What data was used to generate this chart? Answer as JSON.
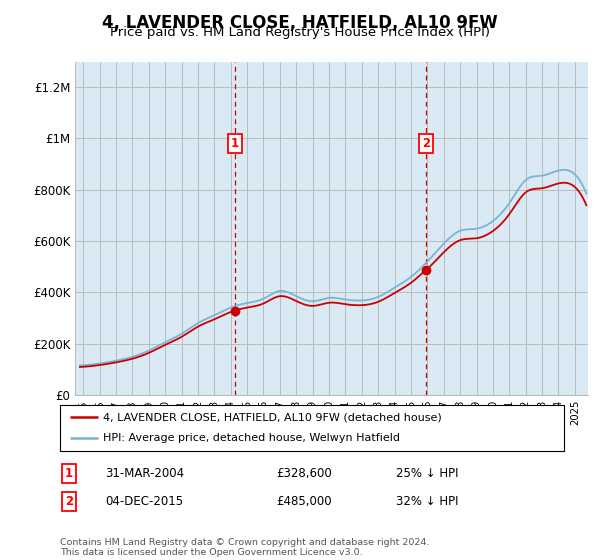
{
  "title": "4, LAVENDER CLOSE, HATFIELD, AL10 9FW",
  "subtitle": "Price paid vs. HM Land Registry's House Price Index (HPI)",
  "legend_line1": "4, LAVENDER CLOSE, HATFIELD, AL10 9FW (detached house)",
  "legend_line2": "HPI: Average price, detached house, Welwyn Hatfield",
  "footnote": "Contains HM Land Registry data © Crown copyright and database right 2024.\nThis data is licensed under the Open Government Licence v3.0.",
  "sale1_date": "31-MAR-2004",
  "sale1_price": "£328,600",
  "sale1_hpi": "25% ↓ HPI",
  "sale2_date": "04-DEC-2015",
  "sale2_price": "£485,000",
  "sale2_hpi": "32% ↓ HPI",
  "sale1_x": 2004.25,
  "sale1_y": 328600,
  "sale2_x": 2015.92,
  "sale2_y": 485000,
  "hpi_color": "#7ab3d4",
  "price_color": "#cc0000",
  "shade_color": "#daeaf5",
  "ylim": [
    0,
    1300000
  ],
  "xlim_start": 1994.5,
  "xlim_end": 2025.8,
  "grid_color": "#bbbbbb",
  "title_fontsize": 12,
  "subtitle_fontsize": 9.5,
  "hpi_years": [
    1995,
    1996,
    1997,
    1998,
    1999,
    2000,
    2001,
    2002,
    2003,
    2004,
    2005,
    2006,
    2007,
    2008,
    2009,
    2010,
    2011,
    2012,
    2013,
    2014,
    2015,
    2016,
    2017,
    2018,
    2019,
    2020,
    2021,
    2022,
    2023,
    2024,
    2025
  ],
  "hpi_values": [
    115000,
    122000,
    133000,
    148000,
    172000,
    205000,
    238000,
    280000,
    310000,
    340000,
    358000,
    375000,
    405000,
    385000,
    365000,
    378000,
    372000,
    368000,
    382000,
    418000,
    460000,
    520000,
    590000,
    640000,
    648000,
    678000,
    748000,
    838000,
    855000,
    875000,
    860000
  ]
}
